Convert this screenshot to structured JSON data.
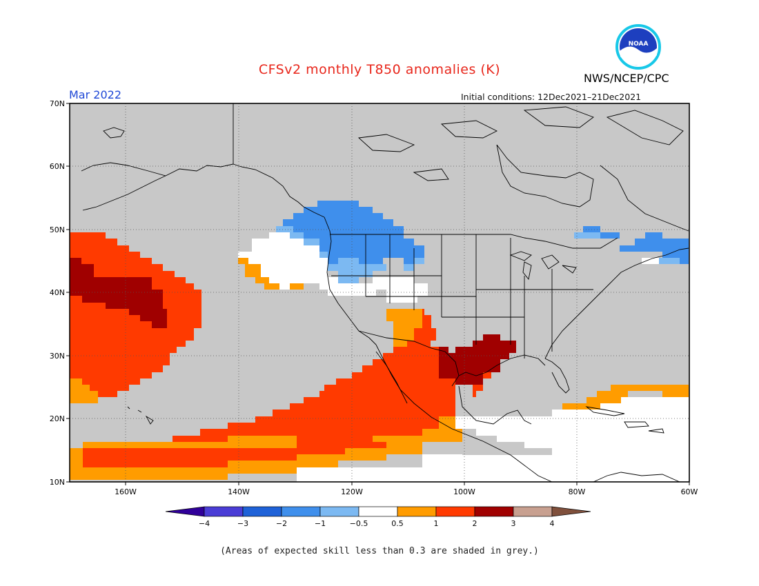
{
  "header": {
    "title": "CFSv2 monthly T850 anomalies (K)",
    "month": "Mar 2022",
    "organization": "NWS/NCEP/CPC",
    "initial_conditions": "Initial conditions: 12Dec2021–21Dec2021",
    "logo_text": "NOAA"
  },
  "map": {
    "projection": "equirectangular",
    "lon_range": [
      -171,
      -60
    ],
    "lat_range": [
      10,
      70
    ],
    "background_color": "#c8c8c8",
    "lat_labels": [
      "70N",
      "60N",
      "50N",
      "40N",
      "30N",
      "20N",
      "10N"
    ],
    "lon_labels": [
      "160W",
      "140W",
      "120W",
      "100W",
      "80W",
      "60W"
    ]
  },
  "legend": {
    "colors": [
      "#30009a",
      "#4a3dd6",
      "#1f62d8",
      "#3f8fec",
      "#7cb9f2",
      "#ffffff",
      "#ff9c00",
      "#ff3a00",
      "#a00000",
      "#c8a090",
      "#80503c"
    ],
    "labels": [
      "−4",
      "−3",
      "−2",
      "−1",
      "−0.5",
      "0.5",
      "1",
      "2",
      "3",
      "4"
    ]
  },
  "footnote": "(Areas of expected skill less than 0.3 are shaded in grey.)"
}
